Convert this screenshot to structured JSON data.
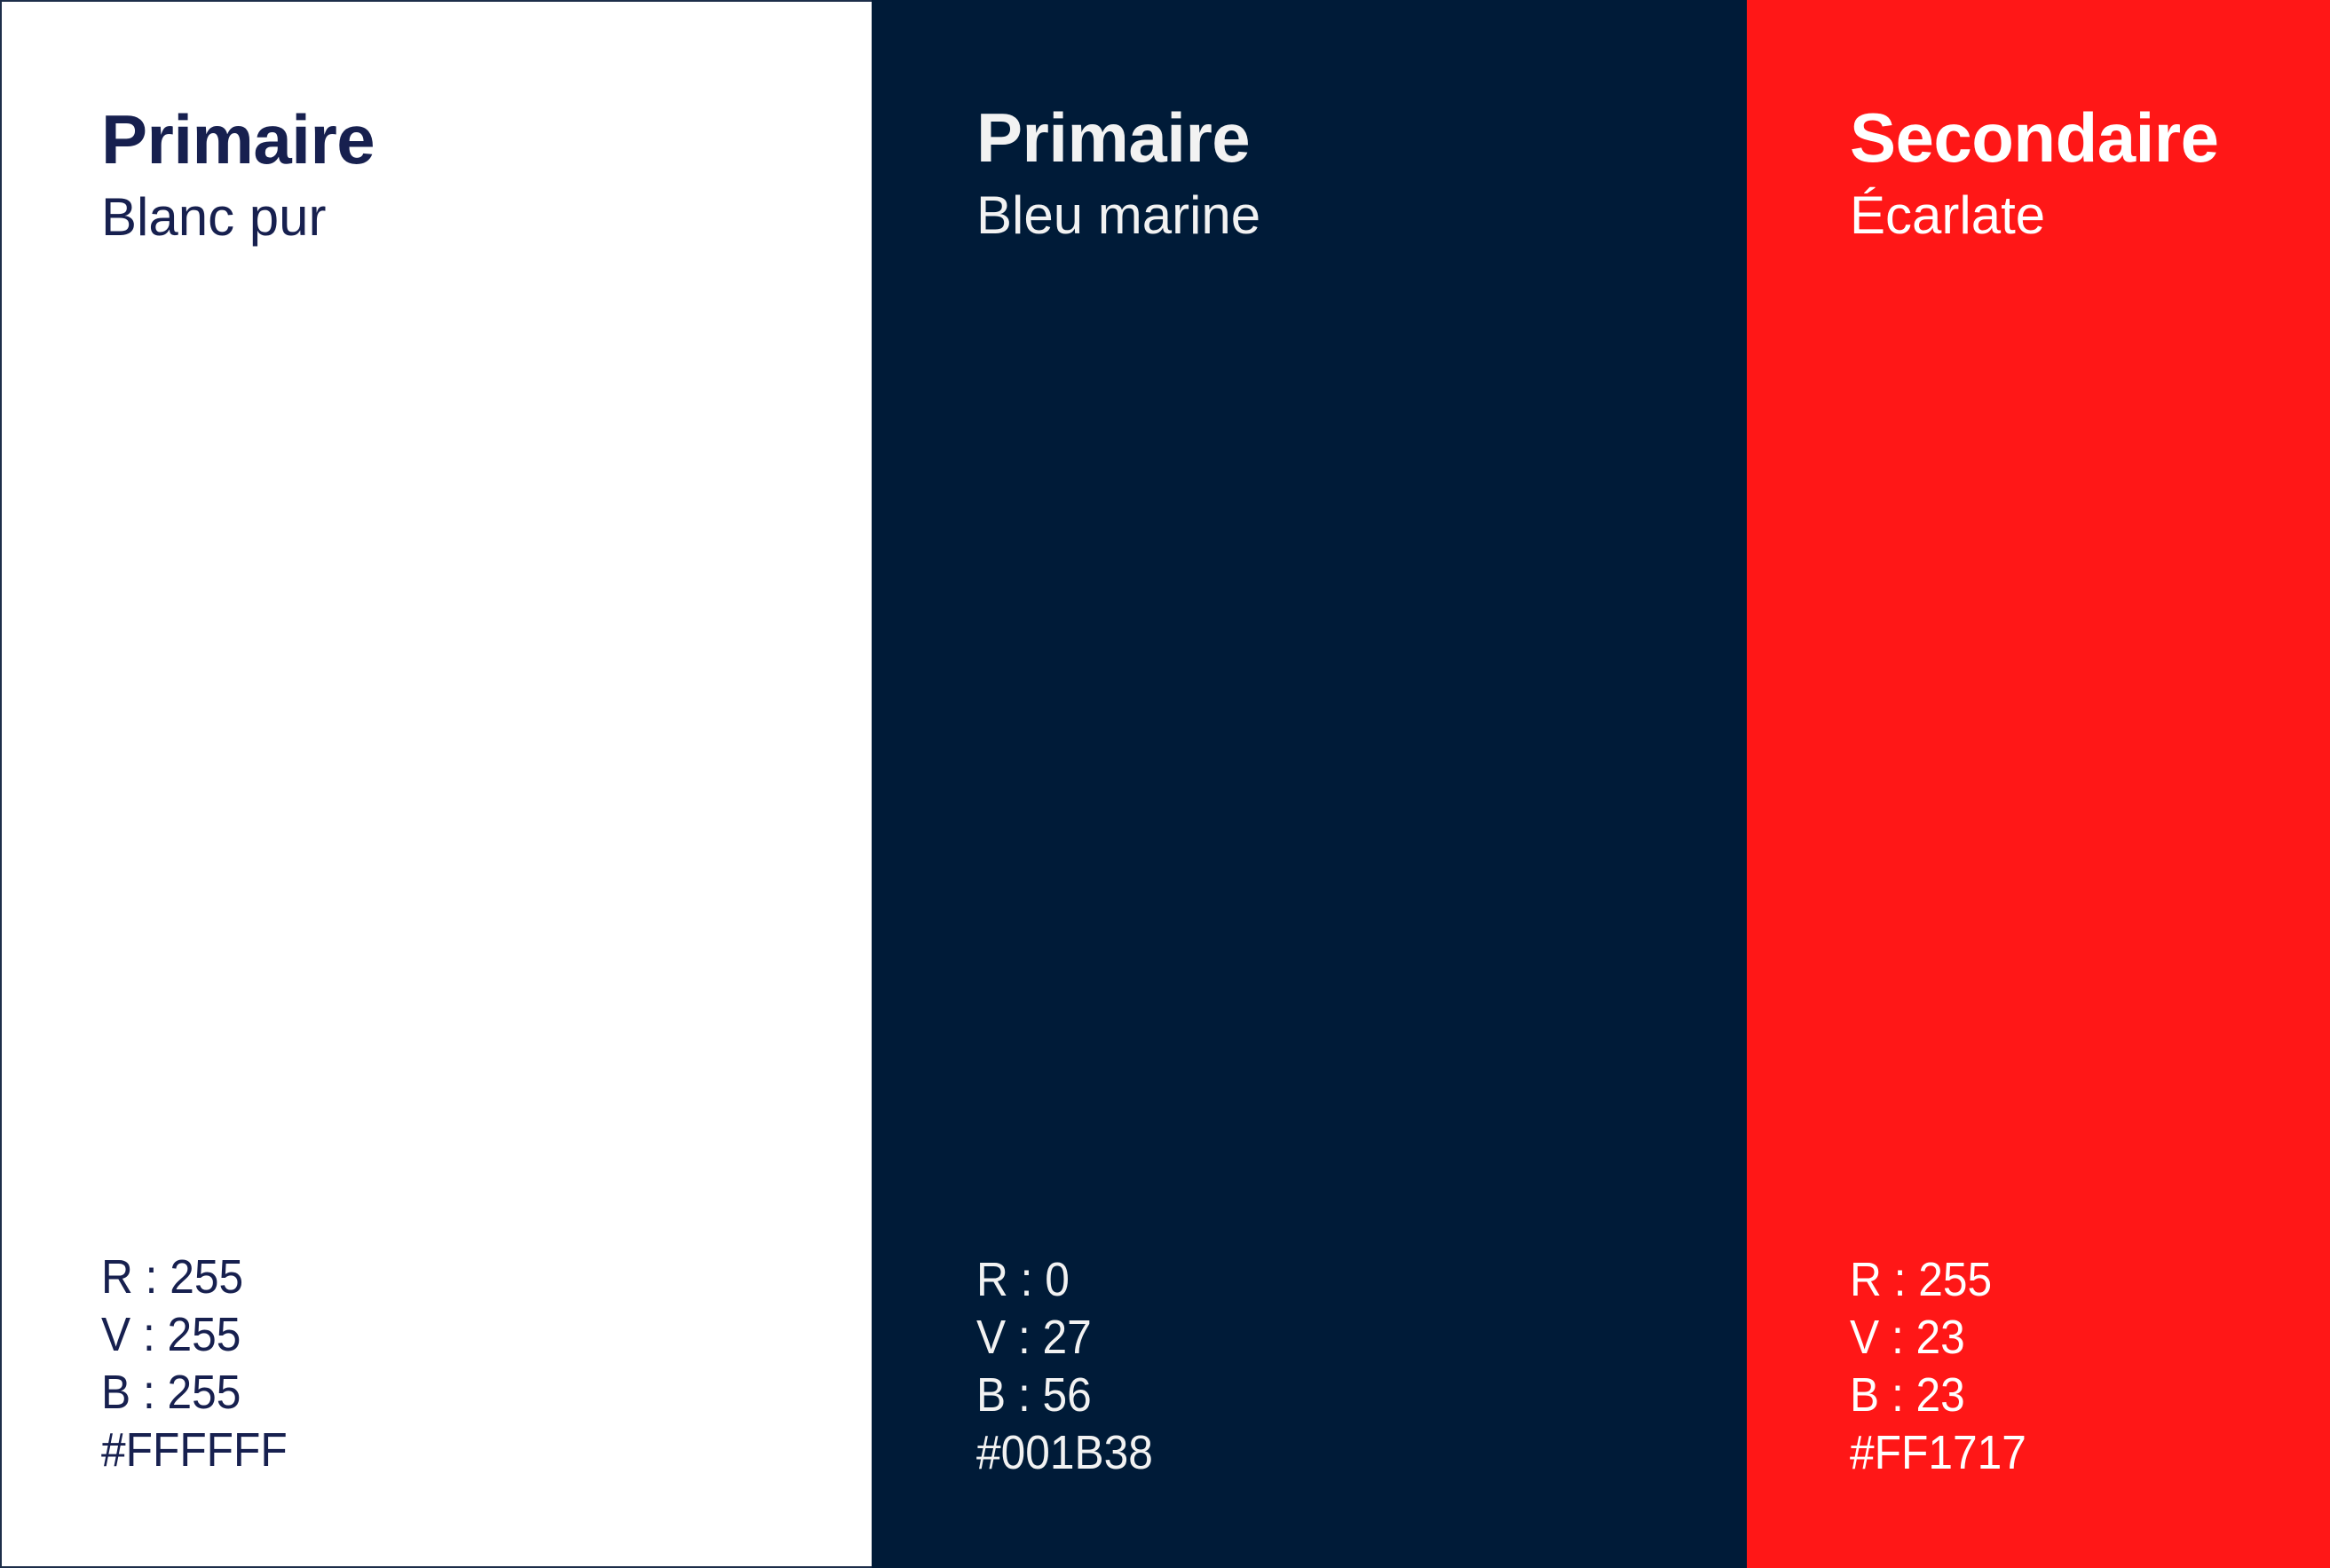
{
  "swatches": [
    {
      "title": "Primaire",
      "name": "Blanc pur",
      "r": "R : 255",
      "v": "V : 255",
      "b": "B : 255",
      "hex": "#FFFFFF",
      "color": "#FFFFFF"
    },
    {
      "title": "Primaire",
      "name": "Bleu marine",
      "r": "R : 0",
      "v": "V : 27",
      "b": "B : 56",
      "hex": "#001B38",
      "color": "#001B38"
    },
    {
      "title": "Secondaire",
      "name": "Écarlate",
      "r": "R : 255",
      "v": "V : 23",
      "b": "B : 23",
      "hex": "#FF1717",
      "color": "#FF1717"
    }
  ]
}
